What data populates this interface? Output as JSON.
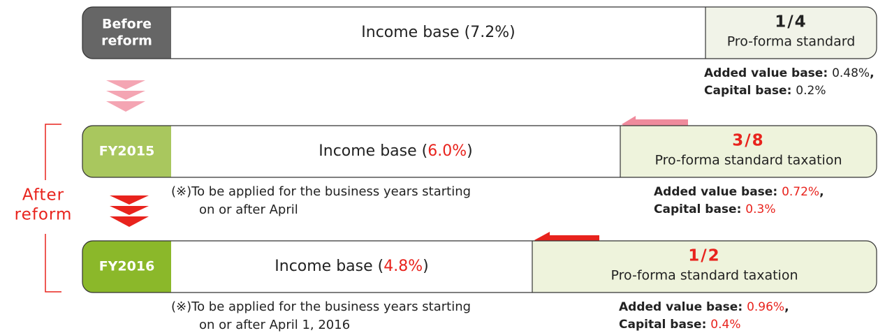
{
  "side_label": [
    "After",
    "reform"
  ],
  "rows": [
    {
      "label": [
        "Before",
        "reform"
      ],
      "label_color": "#666666",
      "income": {
        "prefix": "Income base (",
        "rate": "7.2%",
        "suffix": ")"
      },
      "ratio": "1/4",
      "ratio_label": "Pro-forma standard",
      "ratio_color": "#222222",
      "rate_color": "#222222",
      "added_value": {
        "prefix": "Added value base: ",
        "rate": "0.48%",
        "suffix": ","
      },
      "capital": {
        "prefix": "Capital base: ",
        "rate": "0.2%"
      }
    },
    {
      "label": [
        "FY2015"
      ],
      "label_color": "#a9c75e",
      "income": {
        "prefix": "Income base (",
        "rate": "6.0%",
        "suffix": ")"
      },
      "ratio": "3/8",
      "ratio_label": "Pro-forma standard taxation",
      "ratio_color": "#e8231d",
      "rate_color": "#e8231d",
      "note": [
        "(※)To be applied for the business years starting",
        "on or after April"
      ],
      "added_value": {
        "prefix": "Added value base: ",
        "rate": "0.72%",
        "suffix": ","
      },
      "capital": {
        "prefix": "Capital base: ",
        "rate": "0.3%"
      }
    },
    {
      "label": [
        "FY2016"
      ],
      "label_color": "#8bb82a",
      "income": {
        "prefix": "Income base (",
        "rate": "4.8%",
        "suffix": ")"
      },
      "ratio": "1/2",
      "ratio_label": "Pro-forma standard taxation",
      "ratio_color": "#e8231d",
      "rate_color": "#e8231d",
      "note": [
        "(※)To be applied for the business years starting",
        "on or after April 1, 2016"
      ],
      "added_value": {
        "prefix": "Added value base: ",
        "rate": "0.96%",
        "suffix": ","
      },
      "capital": {
        "prefix": "Capital base: ",
        "rate": "0.4%"
      }
    }
  ]
}
